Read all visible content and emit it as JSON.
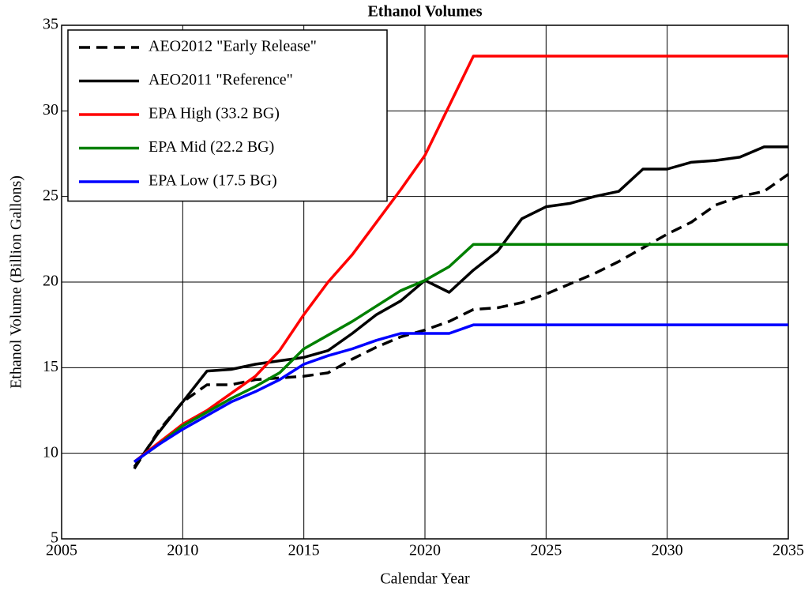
{
  "chart_data": {
    "type": "line",
    "title": "Ethanol Volumes",
    "x_label": "Calendar Year",
    "y_label": "Ethanol Volume (Billion Gallons)",
    "x": [
      2008,
      2009,
      2010,
      2011,
      2012,
      2013,
      2014,
      2015,
      2016,
      2017,
      2018,
      2019,
      2020,
      2021,
      2022,
      2023,
      2024,
      2025,
      2026,
      2027,
      2028,
      2029,
      2030,
      2031,
      2032,
      2033,
      2034,
      2035
    ],
    "series": [
      {
        "name": "AEO2012 \"Early Release\"",
        "color": "#000000",
        "dashed": true,
        "values": [
          9.1,
          11.3,
          13.0,
          14.0,
          14.0,
          14.3,
          14.4,
          14.5,
          14.7,
          15.5,
          16.2,
          16.8,
          17.2,
          17.7,
          18.4,
          18.5,
          18.8,
          19.3,
          19.9,
          20.5,
          21.2,
          22.0,
          22.8,
          23.5,
          24.5,
          25.0,
          25.3,
          26.3
        ]
      },
      {
        "name": "AEO2011 \"Reference\"",
        "color": "#000000",
        "dashed": false,
        "values": [
          9.2,
          11.2,
          13.0,
          14.8,
          14.9,
          15.2,
          15.4,
          15.6,
          16.0,
          17.0,
          18.1,
          18.9,
          20.1,
          19.4,
          20.7,
          21.8,
          23.7,
          24.4,
          24.6,
          25.0,
          25.3,
          26.6,
          26.6,
          27.0,
          27.1,
          27.3,
          27.9,
          27.9
        ]
      },
      {
        "name": "EPA High (33.2 BG)",
        "color": "#ff0000",
        "dashed": false,
        "values": [
          9.5,
          10.6,
          11.7,
          12.5,
          13.5,
          14.5,
          16.0,
          18.1,
          20.0,
          21.6,
          23.5,
          25.4,
          27.4,
          30.3,
          33.2,
          33.2,
          33.2,
          33.2,
          33.2,
          33.2,
          33.2,
          33.2,
          33.2,
          33.2,
          33.2,
          33.2,
          33.2,
          33.2
        ]
      },
      {
        "name": "EPA Mid (22.2 BG)",
        "color": "#008000",
        "dashed": false,
        "values": [
          9.5,
          10.5,
          11.6,
          12.4,
          13.2,
          13.9,
          14.7,
          16.1,
          16.9,
          17.7,
          18.6,
          19.5,
          20.1,
          20.9,
          22.2,
          22.2,
          22.2,
          22.2,
          22.2,
          22.2,
          22.2,
          22.2,
          22.2,
          22.2,
          22.2,
          22.2,
          22.2,
          22.2
        ]
      },
      {
        "name": "EPA Low (17.5 BG)",
        "color": "#0000ff",
        "dashed": false,
        "values": [
          9.5,
          10.5,
          11.4,
          12.2,
          13.0,
          13.6,
          14.3,
          15.2,
          15.7,
          16.1,
          16.6,
          17.0,
          17.0,
          17.0,
          17.5,
          17.5,
          17.5,
          17.5,
          17.5,
          17.5,
          17.5,
          17.5,
          17.5,
          17.5,
          17.5,
          17.5,
          17.5,
          17.5
        ]
      }
    ],
    "xlim": [
      2005,
      2035
    ],
    "xticks": [
      2005,
      2010,
      2015,
      2020,
      2025,
      2030,
      2035
    ],
    "ylim": [
      5,
      35
    ],
    "yticks": [
      5,
      10,
      15,
      20,
      25,
      30,
      35
    ],
    "grid": true,
    "legend": "top-left"
  }
}
